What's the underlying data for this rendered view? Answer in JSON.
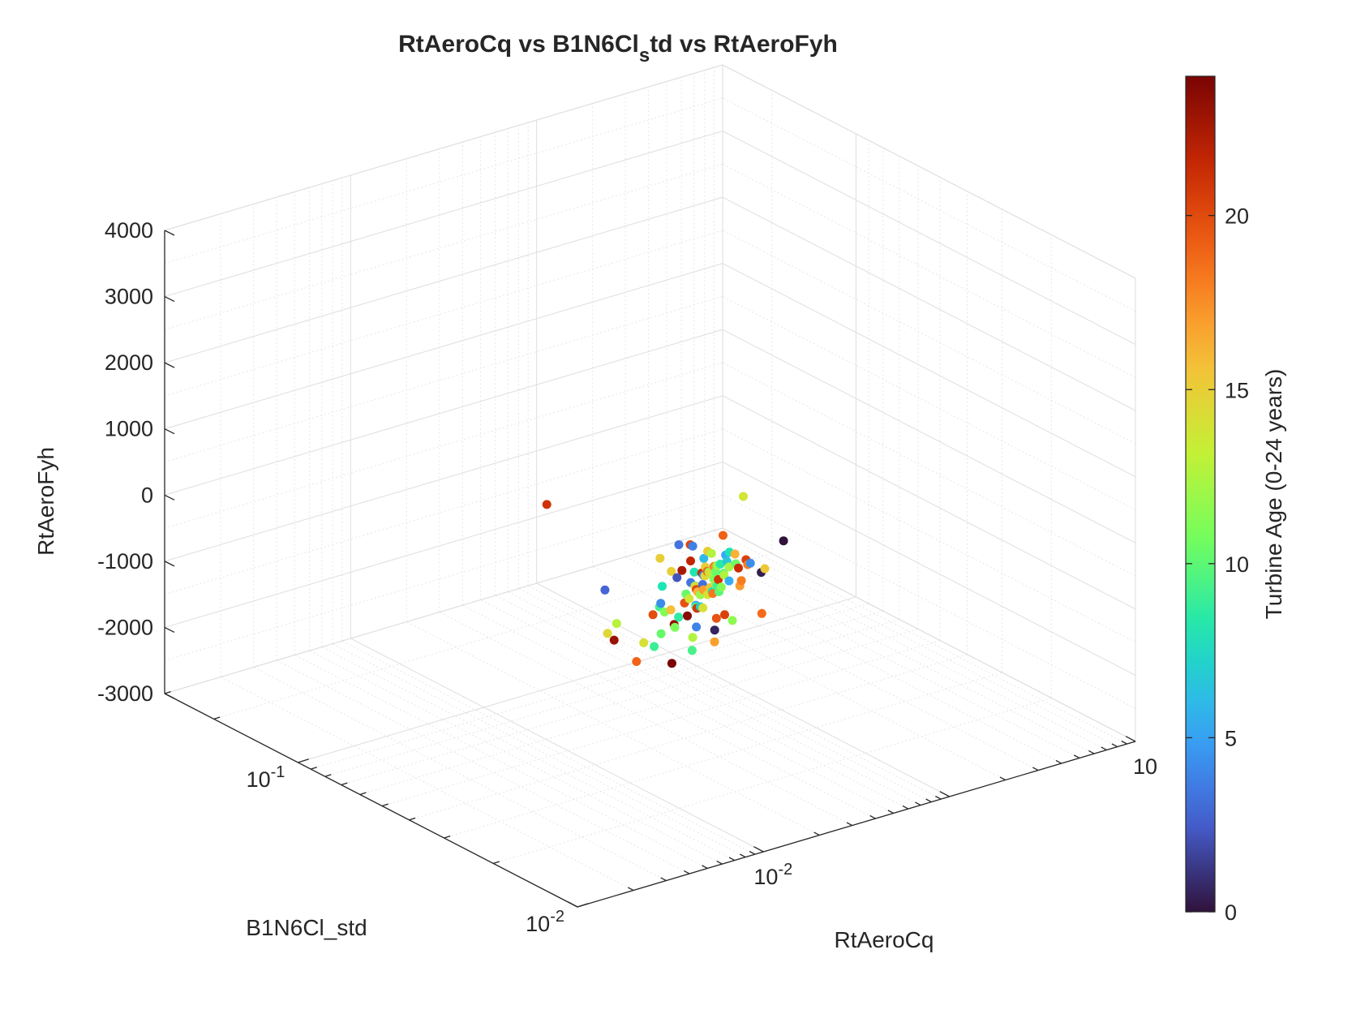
{
  "chart_data": {
    "type": "scatter",
    "projection": "3d",
    "title_parts": [
      "RtAeroCq vs B1N6Cl",
      "s",
      "td vs RtAeroFyh"
    ],
    "xlabel": "RtAeroCq",
    "ylabel": "B1N6Cl_std",
    "zlabel": "RtAeroFyh",
    "colorbar_label": "Turbine Age (0-24 years)",
    "x_scale": "log",
    "y_scale": "log",
    "z_scale": "linear",
    "xlim": [
      0.001,
      1
    ],
    "ylim": [
      0.01,
      0.3
    ],
    "zlim": [
      -3000,
      4000
    ],
    "clim": [
      0,
      24
    ],
    "x_ticks": [
      {
        "base": "10",
        "exp": "-2"
      },
      {
        "base": "10",
        "exp": ""
      }
    ],
    "y_ticks": [
      {
        "base": "10",
        "exp": "-1"
      },
      {
        "base": "10",
        "exp": "-2"
      }
    ],
    "z_ticks": [
      "4000",
      "3000",
      "2000",
      "1000",
      "0",
      "-1000",
      "-2000",
      "-3000"
    ],
    "colorbar_ticks": [
      "20",
      "15",
      "10",
      "5",
      "0"
    ],
    "grid": true,
    "colormap": "turbo",
    "colormap_stops": [
      "#30123b",
      "#4662d7",
      "#36aaf9",
      "#1ae4b6",
      "#72fe5e",
      "#c8ef34",
      "#faba39",
      "#f66b19",
      "#ca2a04",
      "#7a0403"
    ],
    "series": [
      {
        "columns": [
          "RtAeroCq",
          "B1N6Cl_std",
          "RtAeroFyh",
          "TurbineAge"
        ],
        "points": [
          [
            0.0182,
            0.0309,
            -895,
            11.0
          ],
          [
            0.0152,
            0.0325,
            -1167,
            9.0
          ],
          [
            0.0247,
            0.1088,
            -342,
            21.0
          ],
          [
            0.1022,
            0.0398,
            -452,
            0.0
          ],
          [
            0.0286,
            0.0368,
            24,
            20.2
          ],
          [
            0.0117,
            0.0401,
            -1073,
            14.5
          ],
          [
            0.0181,
            0.0258,
            -716,
            3.9
          ],
          [
            0.0322,
            0.0257,
            1051,
            13.8
          ],
          [
            0.0117,
            0.038,
            -1124,
            23.0
          ],
          [
            0.0251,
            0.0336,
            -413,
            3.4
          ],
          [
            0.0132,
            0.0444,
            -558,
            2.7
          ],
          [
            0.0297,
            0.0282,
            107,
            5.3
          ],
          [
            0.0136,
            0.0261,
            -1173,
            24.0
          ],
          [
            0.0263,
            0.0276,
            -198,
            20.9
          ],
          [
            0.0219,
            0.0232,
            -500,
            20.4
          ],
          [
            0.0284,
            0.0203,
            -449,
            18.7
          ],
          [
            0.0211,
            0.0343,
            -1004,
            23.2
          ],
          [
            0.0167,
            0.0327,
            -1014,
            10.3
          ],
          [
            0.0111,
            0.0305,
            -1220,
            19.0
          ],
          [
            0.0271,
            0.039,
            -11,
            3.3
          ],
          [
            0.0247,
            0.0321,
            -414,
            7.3
          ],
          [
            0.0304,
            0.0332,
            2,
            15.1
          ],
          [
            0.0241,
            0.0421,
            -246,
            15.0
          ],
          [
            0.0271,
            0.0302,
            -200,
            14.3
          ],
          [
            0.0243,
            0.0274,
            -374,
            18.3
          ],
          [
            0.0337,
            0.0222,
            83,
            15.3
          ],
          [
            0.0194,
            0.0291,
            -687,
            23.5
          ],
          [
            0.0239,
            0.0293,
            -376,
            16.9
          ],
          [
            0.0189,
            0.0356,
            -679,
            4.2
          ],
          [
            0.0278,
            0.024,
            -181,
            17.0
          ],
          [
            0.0257,
            0.0367,
            -323,
            22.5
          ],
          [
            0.0224,
            0.0221,
            -548,
            11.5
          ],
          [
            0.0316,
            0.0219,
            63,
            0.4
          ],
          [
            0.0232,
            0.0374,
            -318,
            15.0
          ],
          [
            0.0128,
            0.0395,
            -942,
            12.8
          ],
          [
            0.0156,
            0.0242,
            -956,
            9.4
          ],
          [
            0.0258,
            0.0308,
            -233,
            4.1
          ],
          [
            0.0169,
            0.0254,
            -833,
            12.6
          ],
          [
            0.0259,
            0.0305,
            -234,
            14.6
          ],
          [
            0.0203,
            0.028,
            -530,
            9.3
          ],
          [
            0.0213,
            0.0278,
            -541,
            6.9
          ],
          [
            0.0323,
            0.0276,
            112,
            16.3
          ],
          [
            0.0128,
            0.0316,
            -1022,
            14.1
          ],
          [
            0.0252,
            0.0282,
            -383,
            7.9
          ],
          [
            0.02,
            0.0237,
            -718,
            0.6
          ],
          [
            0.0208,
            0.024,
            -567,
            19.6
          ],
          [
            0.0296,
            0.0253,
            15,
            21.3
          ],
          [
            0.0282,
            0.0357,
            38,
            3.8
          ],
          [
            0.0204,
            0.037,
            -486,
            8.1
          ],
          [
            0.0353,
            0.0323,
            213,
            19.1
          ],
          [
            0.0326,
            0.025,
            43,
            18.1
          ],
          [
            0.0271,
            0.0288,
            -132,
            10.4
          ],
          [
            0.0262,
            0.0346,
            -131,
            21.6
          ],
          [
            0.0281,
            0.0275,
            -150,
            12.6
          ],
          [
            0.0327,
            0.0245,
            84,
            4.3
          ],
          [
            0.0187,
            0.0227,
            -831,
            16.9
          ],
          [
            0.0186,
            0.0304,
            -733,
            8.6
          ],
          [
            0.0171,
            0.0323,
            -683,
            11.2
          ],
          [
            0.0255,
            0.0264,
            -259,
            11.3
          ],
          [
            0.0251,
            0.0266,
            -330,
            9.9
          ],
          [
            0.0261,
            0.0315,
            -223,
            21.2
          ],
          [
            0.0287,
            0.0242,
            -121,
            18.1
          ],
          [
            0.0273,
            0.0315,
            -147,
            14.9
          ],
          [
            0.0315,
            0.0284,
            124,
            8.1
          ],
          [
            0.0284,
            0.0301,
            -111,
            18.7
          ],
          [
            0.0185,
            0.0323,
            -679,
            15.8
          ],
          [
            0.0179,
            0.0347,
            -689,
            9.2
          ],
          [
            0.0298,
            0.026,
            51,
            10.5
          ],
          [
            0.0168,
            0.0351,
            -796,
            19.9
          ],
          [
            0.0267,
            0.0291,
            -198,
            12.6
          ],
          [
            0.0325,
            0.0253,
            107,
            20.4
          ],
          [
            0.0281,
            0.0325,
            -59,
            6.0
          ],
          [
            0.0215,
            0.0274,
            -547,
            14.1
          ],
          [
            0.0254,
            0.0329,
            -240,
            8.2
          ],
          [
            0.0259,
            0.0279,
            -285,
            12.6
          ],
          [
            0.0232,
            0.0357,
            -367,
            2.2
          ],
          [
            0.0205,
            0.0279,
            -553,
            20.8
          ],
          [
            0.0271,
            0.0304,
            -186,
            11.6
          ],
          [
            0.0238,
            0.0282,
            -410,
            14.1
          ],
          [
            0.0198,
            0.0302,
            -535,
            19.7
          ],
          [
            0.0294,
            0.0272,
            -35,
            12.4
          ],
          [
            0.0219,
            0.0319,
            -487,
            10.3
          ],
          [
            0.0282,
            0.0277,
            -134,
            9.7
          ],
          [
            0.0232,
            0.0301,
            -421,
            16.2
          ],
          [
            0.0296,
            0.0316,
            25,
            12.7
          ],
          [
            0.0276,
            0.0261,
            -184,
            5.5
          ],
          [
            0.0234,
            0.0306,
            -404,
            20.1
          ],
          [
            0.0249,
            0.0285,
            -332,
            15.4
          ],
          [
            0.0292,
            0.0291,
            -53,
            8.5
          ],
          [
            0.0213,
            0.0305,
            -506,
            13.7
          ],
          [
            0.0265,
            0.0288,
            -236,
            11.0
          ],
          [
            0.0248,
            0.0302,
            -337,
            3.2
          ],
          [
            0.0282,
            0.0298,
            -107,
            17.6
          ],
          [
            0.0257,
            0.0275,
            -282,
            9.1
          ],
          [
            0.0238,
            0.0313,
            -383,
            14.3
          ],
          [
            0.0302,
            0.0282,
            5,
            6.7
          ],
          [
            0.0229,
            0.0292,
            -432,
            12.0
          ],
          [
            0.0269,
            0.0307,
            -183,
            18.9
          ],
          [
            0.0211,
            0.0287,
            -544,
            4.9
          ],
          [
            0.0287,
            0.0296,
            -87,
            11.7
          ]
        ]
      }
    ]
  }
}
